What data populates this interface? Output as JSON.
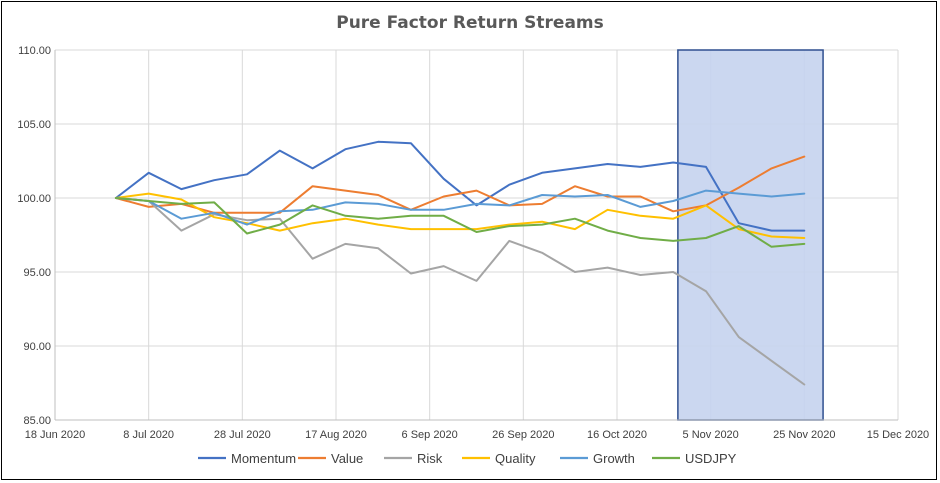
{
  "chart_data": {
    "type": "line",
    "title": "Pure Factor Return Streams",
    "xlabel": "",
    "ylabel": "",
    "ylim": [
      85,
      110
    ],
    "yticks": [
      85,
      90,
      95,
      100,
      105,
      110
    ],
    "ytick_labels": [
      "85.00",
      "90.00",
      "95.00",
      "100.00",
      "105.00",
      "110.00"
    ],
    "xlim": [
      "2020-06-18",
      "2020-12-15"
    ],
    "xticks": [
      "2020-06-18",
      "2020-07-08",
      "2020-07-28",
      "2020-08-17",
      "2020-09-06",
      "2020-09-26",
      "2020-10-16",
      "2020-11-05",
      "2020-11-25",
      "2020-12-15"
    ],
    "xtick_labels": [
      "18 Jun 2020",
      "8 Jul 2020",
      "28 Jul 2020",
      "17 Aug 2020",
      "6 Sep 2020",
      "26 Sep 2020",
      "16 Oct 2020",
      "5 Nov 2020",
      "25 Nov 2020",
      "15 Dec 2020"
    ],
    "grid": true,
    "legend_position": "bottom",
    "highlight_region": {
      "x": [
        "2020-10-29",
        "2020-11-29"
      ],
      "color": "#c5d3ee"
    },
    "x": [
      "2020-07-01",
      "2020-07-08",
      "2020-07-15",
      "2020-07-22",
      "2020-07-29",
      "2020-08-05",
      "2020-08-12",
      "2020-08-19",
      "2020-08-26",
      "2020-09-02",
      "2020-09-09",
      "2020-09-16",
      "2020-09-23",
      "2020-09-30",
      "2020-10-07",
      "2020-10-14",
      "2020-10-21",
      "2020-10-28",
      "2020-11-04",
      "2020-11-11",
      "2020-11-18",
      "2020-11-25"
    ],
    "series": [
      {
        "name": "Momentum",
        "color": "#4472c4",
        "values": [
          100.0,
          101.7,
          100.6,
          101.2,
          101.6,
          103.2,
          102.0,
          103.3,
          103.8,
          103.7,
          101.3,
          99.5,
          100.9,
          101.7,
          102.0,
          102.3,
          102.1,
          102.4,
          102.1,
          98.3,
          97.8,
          97.8
        ]
      },
      {
        "name": "Value",
        "color": "#ed7d31",
        "values": [
          100.0,
          99.4,
          99.6,
          99.0,
          99.0,
          99.0,
          100.8,
          100.5,
          100.2,
          99.2,
          100.1,
          100.5,
          99.5,
          99.6,
          100.8,
          100.1,
          100.1,
          99.1,
          99.5,
          100.7,
          102.0,
          102.8
        ]
      },
      {
        "name": "Risk",
        "color": "#a5a5a5",
        "values": [
          100.0,
          99.8,
          97.8,
          98.9,
          98.5,
          98.6,
          95.9,
          96.9,
          96.6,
          94.9,
          95.4,
          94.4,
          97.1,
          96.3,
          95.0,
          95.3,
          94.8,
          95.0,
          93.7,
          90.6,
          89.0,
          87.4
        ]
      },
      {
        "name": "Quality",
        "color": "#ffc000",
        "values": [
          100.0,
          100.3,
          99.9,
          98.7,
          98.3,
          97.8,
          98.3,
          98.6,
          98.2,
          97.9,
          97.9,
          97.9,
          98.2,
          98.4,
          97.9,
          99.2,
          98.8,
          98.6,
          99.5,
          97.9,
          97.4,
          97.3
        ]
      },
      {
        "name": "Growth",
        "color": "#5b9bd5",
        "values": [
          100.0,
          99.8,
          98.6,
          99.0,
          98.2,
          99.1,
          99.2,
          99.7,
          99.6,
          99.2,
          99.2,
          99.6,
          99.5,
          100.2,
          100.1,
          100.2,
          99.4,
          99.8,
          100.5,
          100.3,
          100.1,
          100.3
        ]
      },
      {
        "name": "USDJPY",
        "color": "#70ad47",
        "values": [
          100.0,
          99.8,
          99.6,
          99.7,
          97.6,
          98.2,
          99.5,
          98.8,
          98.6,
          98.8,
          98.8,
          97.7,
          98.1,
          98.2,
          98.6,
          97.8,
          97.3,
          97.1,
          97.3,
          98.1,
          96.7,
          96.9
        ]
      }
    ]
  }
}
